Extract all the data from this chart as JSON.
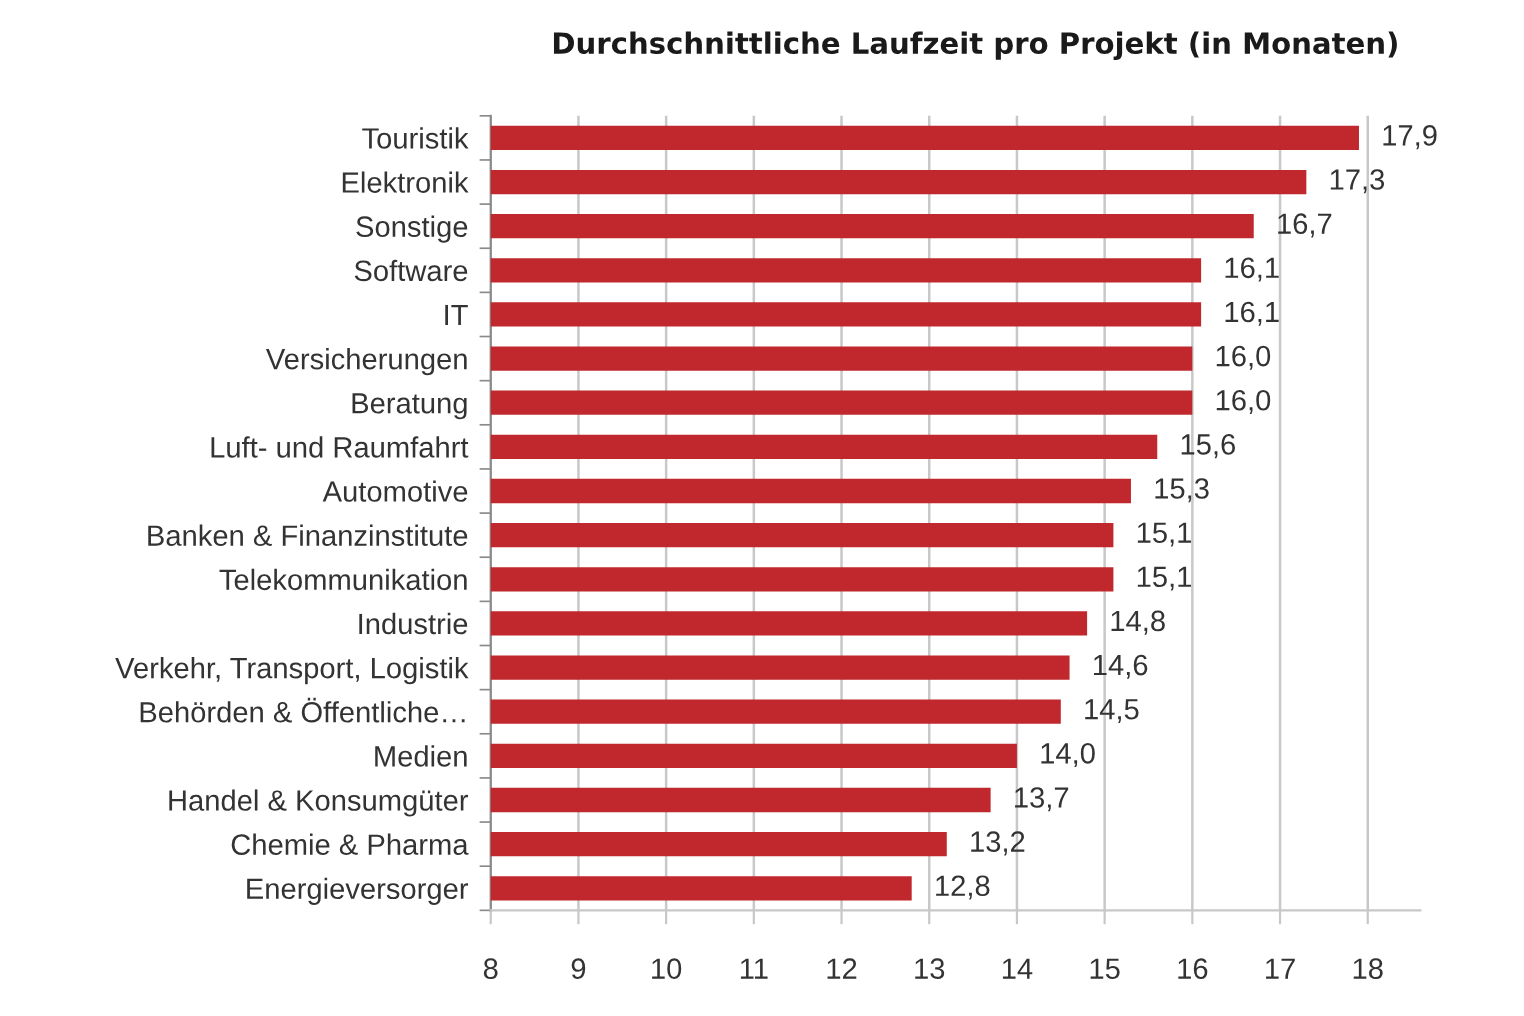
{
  "chart_data": {
    "type": "bar",
    "orientation": "horizontal",
    "title": "Durchschnittliche Laufzeit pro Projekt (in Monaten)",
    "categories": [
      "Touristik",
      "Elektronik",
      "Sonstige",
      "Software",
      "IT",
      "Versicherungen",
      "Beratung",
      "Luft- und Raumfahrt",
      "Automotive",
      "Banken & Finanzinstitute",
      "Telekommunikation",
      "Industrie",
      "Verkehr, Transport, Logistik",
      "Behörden & Öffentliche…",
      "Medien",
      "Handel & Konsumgüter",
      "Chemie & Pharma",
      "Energieversorger"
    ],
    "values": [
      17.9,
      17.3,
      16.7,
      16.1,
      16.1,
      16.0,
      16.0,
      15.6,
      15.3,
      15.1,
      15.1,
      14.8,
      14.6,
      14.5,
      14.0,
      13.7,
      13.2,
      12.8
    ],
    "value_labels": [
      "17,9",
      "17,3",
      "16,7",
      "16,1",
      "16,1",
      "16,0",
      "16,0",
      "15,6",
      "15,3",
      "15,1",
      "15,1",
      "14,8",
      "14,6",
      "14,5",
      "14,0",
      "13,7",
      "13,2",
      "12,8"
    ],
    "color": "#c0282d",
    "xlim": [
      8,
      18.6
    ],
    "xticks": [
      8,
      9,
      10,
      11,
      12,
      13,
      14,
      15,
      16,
      17,
      18
    ],
    "grid": "x"
  }
}
